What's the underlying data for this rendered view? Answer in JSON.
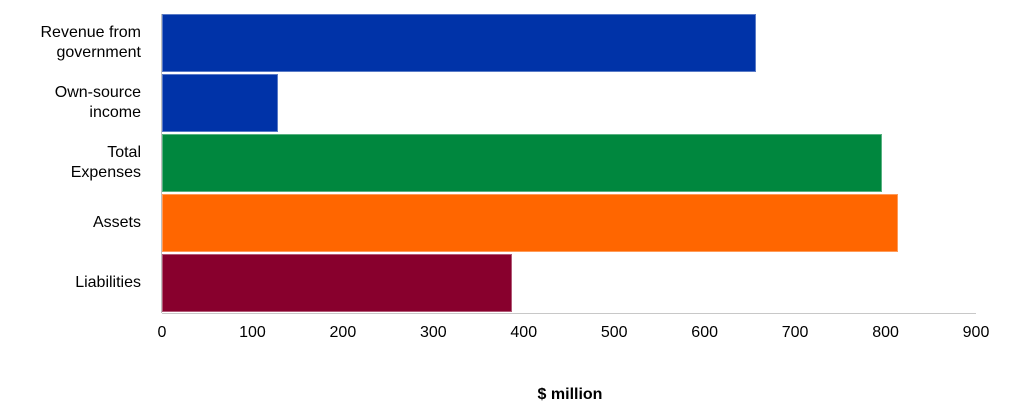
{
  "chart_data": {
    "type": "bar",
    "orientation": "horizontal",
    "title": "",
    "xlabel": "$ million",
    "ylabel": "",
    "xlim": [
      0,
      900
    ],
    "x_ticks": [
      "0",
      "100",
      "200",
      "300",
      "400",
      "500",
      "600",
      "700",
      "800",
      "900"
    ],
    "grid": false,
    "legend": null,
    "categories": [
      "Revenue from government",
      "Own-source income",
      "Total Expenses",
      "Assets",
      "Liabilities"
    ],
    "category_lines": [
      [
        "Revenue from",
        "government"
      ],
      [
        "Own-source",
        "income"
      ],
      [
        "Total",
        "Expenses"
      ],
      [
        "Assets"
      ],
      [
        "Liabilities"
      ]
    ],
    "values": [
      657,
      128,
      796,
      814,
      387
    ],
    "colors": [
      "#0033a8",
      "#0033a8",
      "#00873e",
      "#ff6600",
      "#88002d"
    ]
  }
}
